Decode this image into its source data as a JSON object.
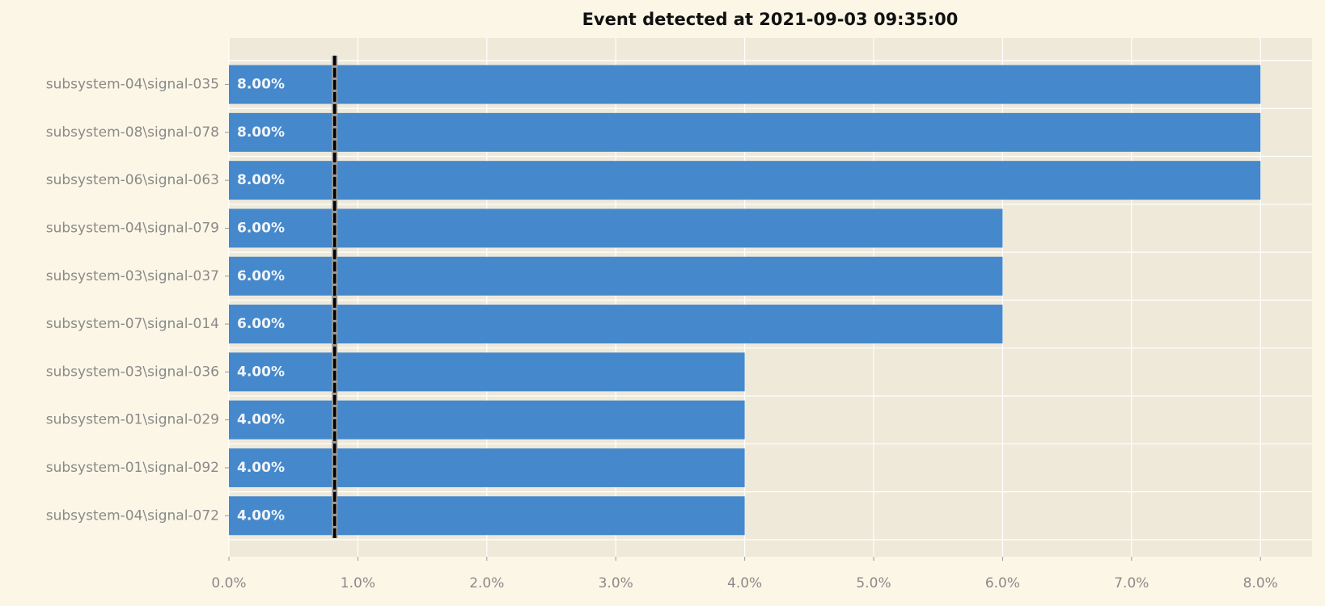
{
  "chart_data": {
    "type": "barh",
    "title": "Event detected at 2021-09-03 09:35:00",
    "categories": [
      "subsystem-04\\signal-035",
      "subsystem-08\\signal-078",
      "subsystem-06\\signal-063",
      "subsystem-04\\signal-079",
      "subsystem-03\\signal-037",
      "subsystem-07\\signal-014",
      "subsystem-03\\signal-036",
      "subsystem-01\\signal-029",
      "subsystem-01\\signal-092",
      "subsystem-04\\signal-072"
    ],
    "values": [
      8,
      8,
      8,
      6,
      6,
      6,
      4,
      4,
      4,
      4
    ],
    "value_labels": [
      "8.00%",
      "8.00%",
      "8.00%",
      "6.00%",
      "6.00%",
      "6.00%",
      "4.00%",
      "4.00%",
      "4.00%",
      "4.00%"
    ],
    "color": "#4589cc",
    "xlim": [
      0,
      8.4
    ],
    "xticks": [
      {
        "value": 0,
        "label": "0.0%"
      },
      {
        "value": 1,
        "label": "1.0%"
      },
      {
        "value": 2,
        "label": "2.0%"
      },
      {
        "value": 3,
        "label": "3.0%"
      },
      {
        "value": 4,
        "label": "4.0%"
      },
      {
        "value": 5,
        "label": "5.0%"
      },
      {
        "value": 6,
        "label": "6.0%"
      },
      {
        "value": 7,
        "label": "7.0%"
      },
      {
        "value": 8,
        "label": "8.0%"
      }
    ],
    "vline": 0.82,
    "grid": true
  }
}
